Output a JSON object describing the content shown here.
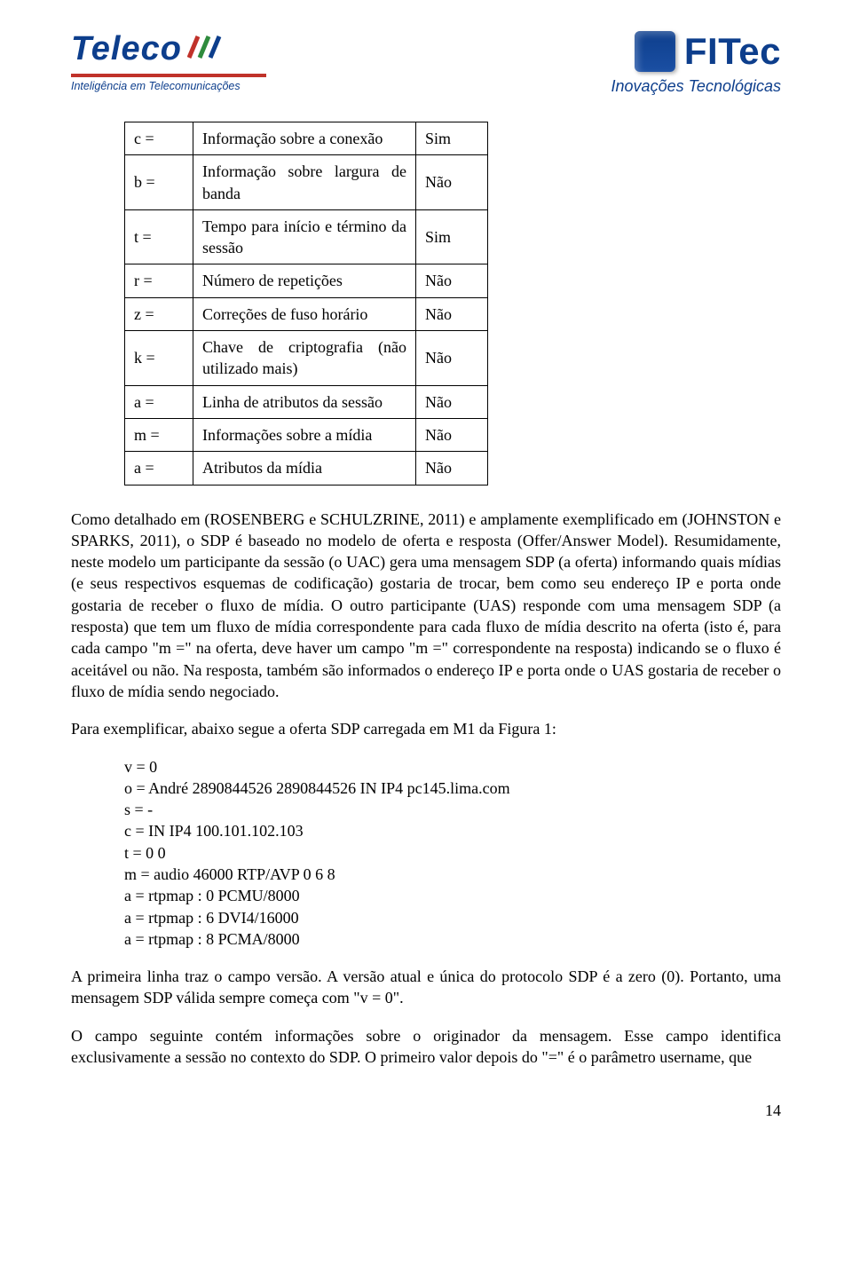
{
  "header": {
    "teleco": {
      "name": "Teleco",
      "tagline": "Inteligência em Telecomunicações"
    },
    "fitec": {
      "name": "FITec",
      "tagline": "Inovações Tecnológicas"
    }
  },
  "table": {
    "rows": [
      {
        "sym": "c =",
        "desc": "Informação sobre a conexão",
        "req": "Sim"
      },
      {
        "sym": "b =",
        "desc": "Informação sobre largura de banda",
        "req": "Não"
      },
      {
        "sym": "t =",
        "desc": "Tempo para início e término da sessão",
        "req": "Sim"
      },
      {
        "sym": "r =",
        "desc": "Número de repetições",
        "req": "Não"
      },
      {
        "sym": "z =",
        "desc": "Correções de fuso horário",
        "req": "Não"
      },
      {
        "sym": "k =",
        "desc": "Chave de criptografia (não utilizado mais)",
        "req": "Não"
      },
      {
        "sym": "a =",
        "desc": "Linha de atributos da sessão",
        "req": "Não"
      },
      {
        "sym": "m =",
        "desc": "Informações sobre a mídia",
        "req": "Não"
      },
      {
        "sym": "a =",
        "desc": "Atributos da mídia",
        "req": "Não"
      }
    ]
  },
  "paragraphs": {
    "p1": "Como detalhado em (ROSENBERG e SCHULZRINE, 2011) e amplamente exemplificado em (JOHNSTON e SPARKS, 2011), o SDP é baseado no modelo de oferta e resposta (Offer/Answer Model). Resumidamente, neste modelo um participante da sessão (o UAC) gera uma mensagem SDP (a oferta) informando quais mídias (e seus respectivos esquemas de codificação) gostaria de trocar, bem como seu endereço IP e porta onde gostaria de receber o fluxo de mídia. O outro participante (UAS) responde com uma mensagem SDP (a resposta) que tem um fluxo de mídia correspondente para cada fluxo de mídia descrito na oferta (isto é, para cada campo \"m =\" na oferta, deve haver um campo \"m =\" correspondente na resposta) indicando se o fluxo é aceitável ou não. Na resposta, também são informados o endereço IP e porta onde o UAS gostaria de receber o fluxo de mídia sendo negociado.",
    "p2": "Para exemplificar, abaixo segue a oferta SDP carregada em M1 da Figura 1:",
    "p3": "A primeira linha traz o campo versão. A versão atual e única do protocolo SDP é a zero (0). Portanto, uma mensagem SDP válida sempre começa com \"v = 0\".",
    "p4": "O campo seguinte contém informações sobre o originador da mensagem. Esse campo identifica exclusivamente a sessão no contexto do SDP. O primeiro valor depois do \"=\" é o parâmetro username, que"
  },
  "example": {
    "lines": [
      "v = 0",
      "o = André 2890844526 2890844526 IN IP4 pc145.lima.com",
      "s = -",
      "c = IN IP4 100.101.102.103",
      "t = 0 0",
      "m = audio 46000 RTP/AVP 0 6 8",
      "a = rtpmap : 0 PCMU/8000",
      "a = rtpmap : 6 DVI4/16000",
      "a = rtpmap : 8 PCMA/8000"
    ]
  },
  "page_number": "14"
}
